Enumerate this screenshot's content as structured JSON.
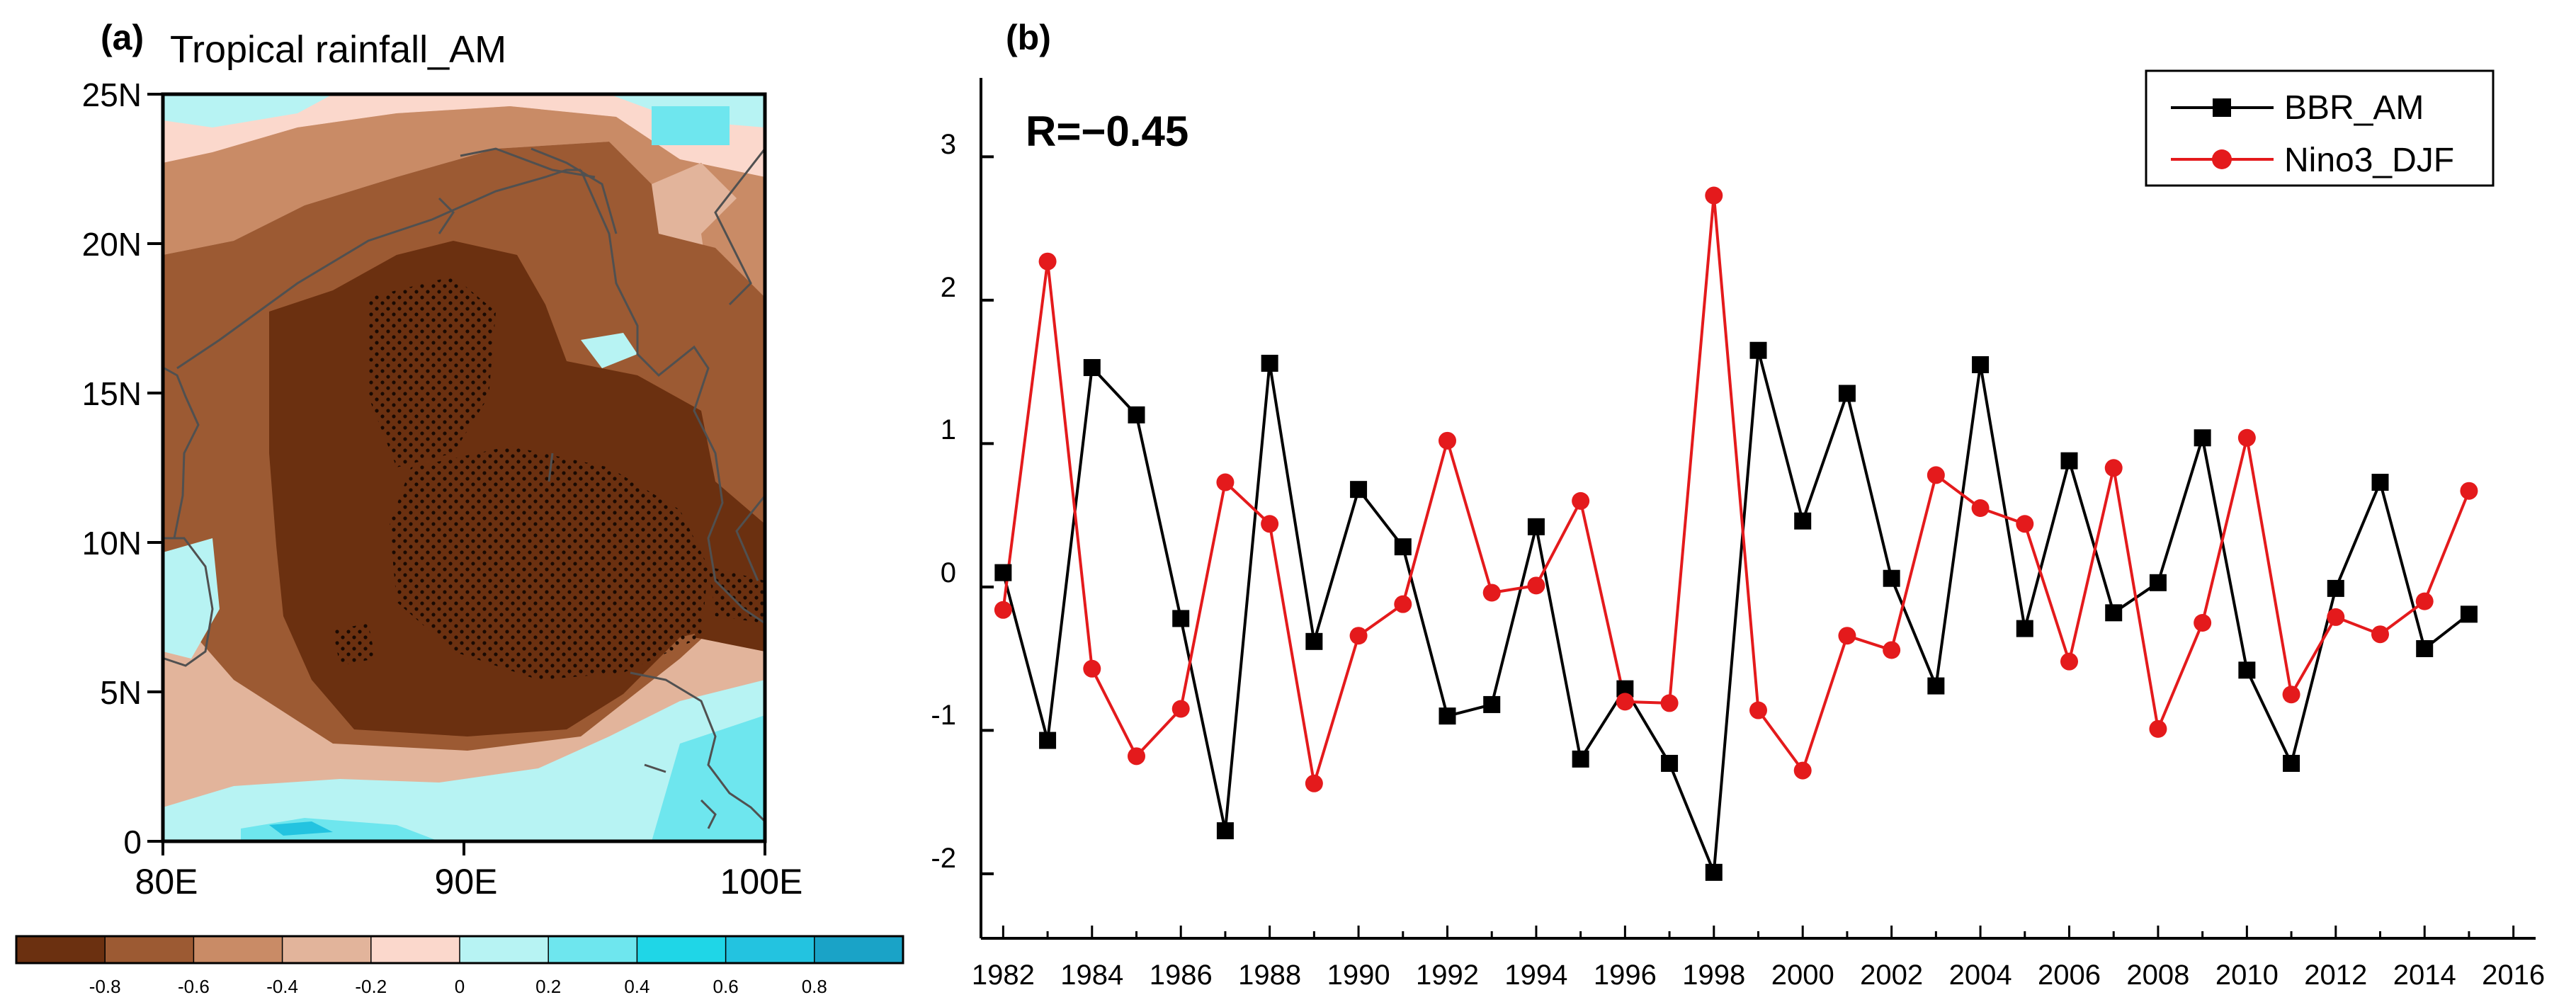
{
  "chart_data": [
    {
      "type": "heatmap",
      "panel_label": "(a)",
      "title": "Tropical rainfall_AM",
      "x_ticks": [
        "80E",
        "90E",
        "100E"
      ],
      "y_ticks": [
        "0",
        "5N",
        "10N",
        "15N",
        "20N",
        "25N"
      ],
      "xlim": [
        80,
        100
      ],
      "ylim": [
        0,
        25
      ],
      "colorbar_ticks": [
        "-0.8",
        "-0.6",
        "-0.4",
        "-0.2",
        "0",
        "0.2",
        "0.4",
        "0.6",
        "0.8"
      ],
      "colorbar_colors": [
        "#6b3010",
        "#9c5a33",
        "#c98b66",
        "#e2b49b",
        "#fbd8cc",
        "#b7f3f3",
        "#6ee6ee",
        "#1fd6e7",
        "#23c3e0",
        "#1aa3c7"
      ],
      "regions": [
        {
          "value": -0.8,
          "description": "strong negative correlation core (stippled, significant)"
        },
        {
          "value": 0.3,
          "description": "weak positive correlation near equator and northwest corner"
        }
      ]
    },
    {
      "type": "line",
      "panel_label": "(b)",
      "annotation": "R=−0.45",
      "x": [
        1982,
        1983,
        1984,
        1985,
        1986,
        1987,
        1988,
        1989,
        1990,
        1991,
        1992,
        1993,
        1994,
        1995,
        1996,
        1997,
        1998,
        1999,
        2000,
        2001,
        2002,
        2003,
        2004,
        2005,
        2006,
        2007,
        2008,
        2009,
        2010,
        2011,
        2012,
        2013,
        2014,
        2015
      ],
      "x_ticks": [
        "1982",
        "1984",
        "1986",
        "1988",
        "1990",
        "1992",
        "1994",
        "1996",
        "1998",
        "2000",
        "2002",
        "2004",
        "2006",
        "2008",
        "2010",
        "2012",
        "2014",
        "2016"
      ],
      "y_ticks": [
        "-2",
        "-1",
        "0",
        "1",
        "2",
        "3"
      ],
      "xlim": [
        1981.5,
        2016.5
      ],
      "ylim": [
        -2.45,
        3.55
      ],
      "legend_position": "top-right",
      "series": [
        {
          "name": "BBR_AM",
          "color": "#000000",
          "marker": "square",
          "values": [
            0.1,
            -1.07,
            1.53,
            1.2,
            -0.22,
            -1.7,
            1.56,
            -0.38,
            0.68,
            0.28,
            -0.9,
            -0.82,
            0.42,
            -1.2,
            -0.71,
            -1.23,
            -1.99,
            1.65,
            0.46,
            1.35,
            0.06,
            -0.69,
            1.55,
            -0.29,
            0.88,
            -0.18,
            0.03,
            1.04,
            -0.58,
            -1.23,
            -0.01,
            0.73,
            -0.43,
            -0.19
          ]
        },
        {
          "name": "Nino3_DJF",
          "color": "#e41a1c",
          "marker": "circle",
          "values": [
            -0.16,
            2.27,
            -0.57,
            -1.18,
            -0.85,
            0.73,
            0.44,
            -1.37,
            -0.34,
            -0.12,
            1.02,
            -0.04,
            0.01,
            0.6,
            -0.8,
            -0.81,
            2.73,
            -0.86,
            -1.28,
            -0.34,
            -0.44,
            0.78,
            0.55,
            0.44,
            -0.52,
            0.83,
            -0.99,
            -0.25,
            1.04,
            -0.75,
            -0.21,
            -0.33,
            -0.1,
            0.67
          ]
        }
      ]
    }
  ]
}
